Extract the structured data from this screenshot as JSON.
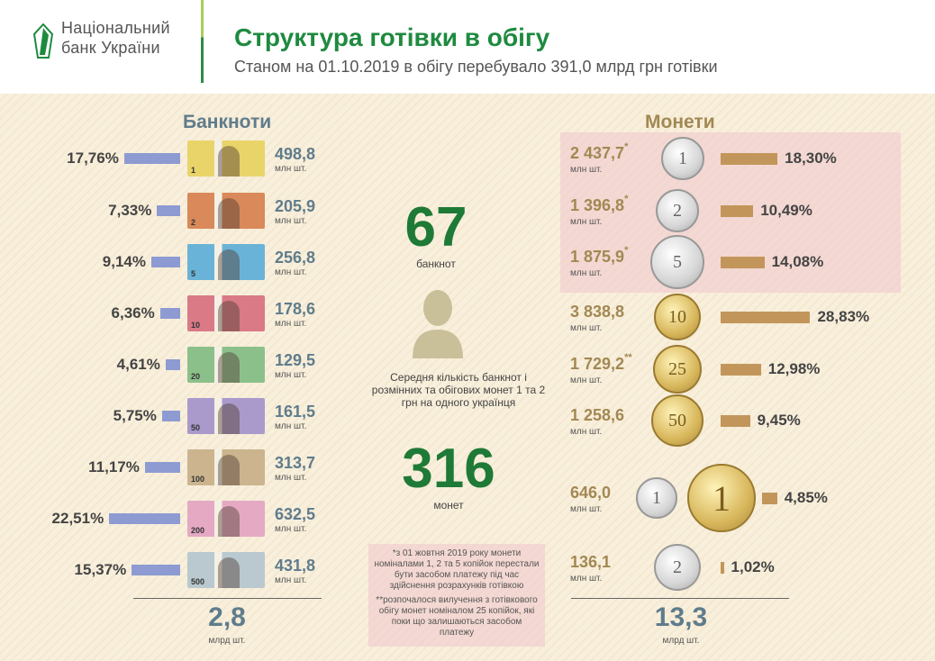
{
  "header": {
    "logo_line1": "Національний",
    "logo_line2": "банк України",
    "title": "Структура готівки в обігу",
    "subtitle": "Станом на 01.10.2019 в обігу перебувало 391,0 млрд  грн готівки"
  },
  "banknotes": {
    "heading": "Банкноти",
    "unit": "млн шт.",
    "total": "2,8",
    "total_unit": "млрд шт.",
    "items": [
      {
        "denomination": "1",
        "percent": "17,76%",
        "pct": 17.76,
        "count": "498,8",
        "color": "#e9d46a"
      },
      {
        "denomination": "2",
        "percent": "7,33%",
        "pct": 7.33,
        "count": "205,9",
        "color": "#d9895a"
      },
      {
        "denomination": "5",
        "percent": "9,14%",
        "pct": 9.14,
        "count": "256,8",
        "color": "#6ab3d8"
      },
      {
        "denomination": "10",
        "percent": "6,36%",
        "pct": 6.36,
        "count": "178,6",
        "color": "#d97a86"
      },
      {
        "denomination": "20",
        "percent": "4,61%",
        "pct": 4.61,
        "count": "129,5",
        "color": "#8cc08a"
      },
      {
        "denomination": "50",
        "percent": "5,75%",
        "pct": 5.75,
        "count": "161,5",
        "color": "#a99acb"
      },
      {
        "denomination": "100",
        "percent": "11,17%",
        "pct": 11.17,
        "count": "313,7",
        "color": "#cbb48e"
      },
      {
        "denomination": "200",
        "percent": "22,51%",
        "pct": 22.51,
        "count": "632,5",
        "color": "#e5a9c4"
      },
      {
        "denomination": "500",
        "percent": "15,37%",
        "pct": 15.37,
        "count": "431,8",
        "color": "#b9c9cf"
      }
    ]
  },
  "center": {
    "banknotes_number": "67",
    "banknotes_label": "банкнот",
    "description": "Середня кількість банкнот і розмінних та обігових монет 1 та 2 грн на одного українця",
    "coins_number": "316",
    "coins_label": "монет",
    "note1": "*з 01 жовтня 2019 року монети номіналами 1, 2 та 5 копійок перестали бути засобом платежу під час здійснення розрахунків готівкою",
    "note2": "**розпочалося вилучення з готівкового обігу монет номіналом 25 копійок, які поки що залишаються засобом платежу"
  },
  "coins": {
    "heading": "Монети",
    "unit": "млн шт.",
    "total": "13,3",
    "total_unit": "млрд шт.",
    "items": [
      {
        "denomination": "1",
        "count": "2 437,7",
        "mark": "*",
        "percent": "18,30%",
        "pct": 18.3,
        "metal": "silver"
      },
      {
        "denomination": "2",
        "count": "1 396,8",
        "mark": "*",
        "percent": "10,49%",
        "pct": 10.49,
        "metal": "silver"
      },
      {
        "denomination": "5",
        "count": "1 875,9",
        "mark": "*",
        "percent": "14,08%",
        "pct": 14.08,
        "metal": "silver"
      },
      {
        "denomination": "10",
        "count": "3 838,8",
        "mark": "",
        "percent": "28,83%",
        "pct": 28.83,
        "metal": "gold"
      },
      {
        "denomination": "25",
        "count": "1 729,2",
        "mark": "**",
        "percent": "12,98%",
        "pct": 12.98,
        "metal": "gold"
      },
      {
        "denomination": "50",
        "count": "1 258,6",
        "mark": "",
        "percent": "9,45%",
        "pct": 9.45,
        "metal": "gold"
      },
      {
        "denomination": "1",
        "count": "646,0",
        "mark": "",
        "percent": "4,85%",
        "pct": 4.85,
        "metal": "silver+gold"
      },
      {
        "denomination": "2",
        "count": "136,1",
        "mark": "",
        "percent": "1,02%",
        "pct": 1.02,
        "metal": "silver"
      }
    ]
  }
}
